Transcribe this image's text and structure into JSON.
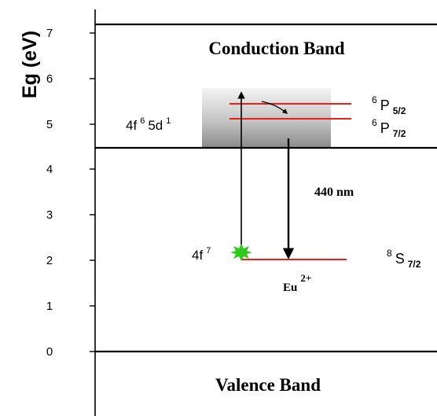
{
  "axis": {
    "title": "Eg (eV)",
    "ticks": [
      "0",
      "1",
      "2",
      "3",
      "4",
      "5",
      "6",
      "7"
    ]
  },
  "bands": {
    "conduction": "Conduction Band",
    "valence": "Valence Band"
  },
  "states": {
    "excited_main": "4f",
    "excited_sup": "6",
    "excited_main2": "5d",
    "excited_sup2": "1",
    "ground_main": "4f",
    "ground_sup": "7"
  },
  "terms": {
    "p52_sup": "6",
    "p52_main": "P",
    "p52_sub": "5/2",
    "p72_sup": "6",
    "p72_main": "P",
    "p72_sub": "7/2",
    "s72_sup": "8",
    "s72_main": "S",
    "s72_sub": "7/2"
  },
  "ion": {
    "main": "Eu",
    "sup": "2+"
  },
  "emission": {
    "label": "440 nm"
  },
  "energies_eV": {
    "conduction_band_edge": 4.5,
    "p52_level": 5.45,
    "p72_level": 5.15,
    "ground_level": 2.03,
    "valence_band_edge": 0
  },
  "colors": {
    "level_line": "#e8211b",
    "star": "#2fc81e",
    "gradient_top": "#f4f4f4",
    "gradient_bottom": "#8a8a8a"
  }
}
